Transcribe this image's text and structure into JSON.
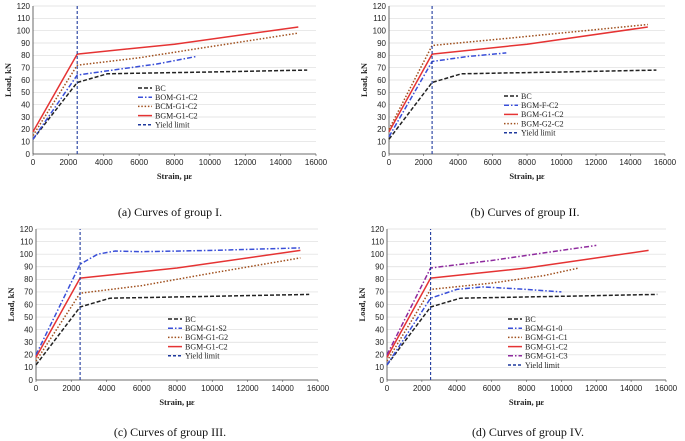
{
  "figure": {
    "xlabel": "Strain, με",
    "ylabel": "Load, kN"
  },
  "chart_data": [
    {
      "type": "line",
      "caption": "(a) Curves of group I.",
      "xlabel": "Strain, με",
      "ylabel": "Load, kN",
      "xlim": [
        0,
        16000
      ],
      "ylim": [
        0,
        120
      ],
      "xticks": [
        0,
        2000,
        4000,
        6000,
        8000,
        10000,
        12000,
        14000,
        16000
      ],
      "yticks": [
        0,
        10,
        20,
        30,
        40,
        50,
        60,
        70,
        80,
        90,
        100,
        110,
        120
      ],
      "yield_limit": 2500,
      "series": [
        {
          "name": "BC",
          "color": "#222222",
          "style": "dashed",
          "x": [
            0,
            2500,
            4200,
            6000,
            10000,
            15500
          ],
          "y": [
            12,
            58,
            65,
            65.5,
            66.5,
            68
          ]
        },
        {
          "name": "BOM-G1-C2",
          "color": "#3a4fd8",
          "style": "dashdot",
          "x": [
            0,
            2500,
            4500,
            7000,
            9200
          ],
          "y": [
            12,
            64,
            68,
            73,
            79
          ]
        },
        {
          "name": "BCM-G1-C2",
          "color": "#a0501e",
          "style": "dotted",
          "x": [
            0,
            2500,
            6000,
            10000,
            15000
          ],
          "y": [
            15,
            72,
            78,
            87,
            98
          ]
        },
        {
          "name": "BGM-G1-C2",
          "color": "#e53333",
          "style": "solid",
          "x": [
            0,
            2500,
            8000,
            15000
          ],
          "y": [
            18,
            81,
            89,
            103
          ]
        },
        {
          "name": "Yield limit",
          "color": "#1f3a9e",
          "style": "shortdash",
          "x": [
            2500,
            2500
          ],
          "y": [
            0,
            120
          ]
        }
      ]
    },
    {
      "type": "line",
      "caption": "(b) Curves of group II.",
      "xlabel": "Strain, με",
      "ylabel": "Load, kN",
      "xlim": [
        0,
        16000
      ],
      "ylim": [
        0,
        120
      ],
      "xticks": [
        0,
        2000,
        4000,
        6000,
        8000,
        10000,
        12000,
        14000,
        16000
      ],
      "yticks": [
        0,
        10,
        20,
        30,
        40,
        50,
        60,
        70,
        80,
        90,
        100,
        110,
        120
      ],
      "yield_limit": 2500,
      "series": [
        {
          "name": "BC",
          "color": "#222222",
          "style": "dashed",
          "x": [
            0,
            2500,
            4200,
            6000,
            10000,
            15500
          ],
          "y": [
            12,
            58,
            65,
            65.5,
            66.5,
            68
          ]
        },
        {
          "name": "BGM-F-C2",
          "color": "#3a4fd8",
          "style": "dashdot",
          "x": [
            0,
            2500,
            4500,
            6800
          ],
          "y": [
            14,
            75,
            79,
            82
          ]
        },
        {
          "name": "BGM-G1-C2",
          "color": "#e53333",
          "style": "solid",
          "x": [
            0,
            2500,
            8000,
            15000
          ],
          "y": [
            18,
            81,
            89,
            103
          ]
        },
        {
          "name": "BGM-G2-C2",
          "color": "#a0501e",
          "style": "dotted",
          "x": [
            0,
            2500,
            7000,
            15000
          ],
          "y": [
            20,
            88,
            94,
            105
          ]
        },
        {
          "name": "Yield limit",
          "color": "#1f3a9e",
          "style": "shortdash",
          "x": [
            2500,
            2500
          ],
          "y": [
            0,
            120
          ]
        }
      ]
    },
    {
      "type": "line",
      "caption": "(c) Curves of group III.",
      "xlabel": "Strain, με",
      "ylabel": "Load, kN",
      "xlim": [
        0,
        16000
      ],
      "ylim": [
        0,
        120
      ],
      "xticks": [
        0,
        2000,
        4000,
        6000,
        8000,
        10000,
        12000,
        14000,
        16000
      ],
      "yticks": [
        0,
        10,
        20,
        30,
        40,
        50,
        60,
        70,
        80,
        90,
        100,
        110,
        120
      ],
      "yield_limit": 2500,
      "series": [
        {
          "name": "BC",
          "color": "#222222",
          "style": "dashed",
          "x": [
            0,
            2500,
            4200,
            6000,
            10000,
            15500
          ],
          "y": [
            12,
            58,
            65,
            65.5,
            66.5,
            68
          ]
        },
        {
          "name": "BGM-G1-S2",
          "color": "#3a4fd8",
          "style": "dashdot",
          "x": [
            0,
            2500,
            3500,
            4500,
            6000,
            10000,
            15000
          ],
          "y": [
            20,
            92,
            100,
            102.5,
            102,
            103,
            105
          ]
        },
        {
          "name": "BGM-G1-G2",
          "color": "#a0501e",
          "style": "dotted",
          "x": [
            0,
            2500,
            6000,
            10000,
            15000
          ],
          "y": [
            15,
            69,
            75,
            85,
            97
          ]
        },
        {
          "name": "BGM-G1-C2",
          "color": "#e53333",
          "style": "solid",
          "x": [
            0,
            2500,
            8000,
            15000
          ],
          "y": [
            18,
            81,
            89,
            103
          ]
        },
        {
          "name": "Yield limit",
          "color": "#1f3a9e",
          "style": "shortdash",
          "x": [
            2500,
            2500
          ],
          "y": [
            0,
            120
          ]
        }
      ]
    },
    {
      "type": "line",
      "caption": "(d) Curves of group IV.",
      "xlabel": "Strain, με",
      "ylabel": "Load, kN",
      "xlim": [
        0,
        16000
      ],
      "ylim": [
        0,
        120
      ],
      "xticks": [
        0,
        2000,
        4000,
        6000,
        8000,
        10000,
        12000,
        14000,
        16000
      ],
      "yticks": [
        0,
        10,
        20,
        30,
        40,
        50,
        60,
        70,
        80,
        90,
        100,
        110,
        120
      ],
      "yield_limit": 2500,
      "series": [
        {
          "name": "BC",
          "color": "#222222",
          "style": "dashed",
          "x": [
            0,
            2500,
            4200,
            6000,
            10000,
            15500
          ],
          "y": [
            12,
            58,
            65,
            65.5,
            66.5,
            68
          ]
        },
        {
          "name": "BGM-G1-0",
          "color": "#3a4fd8",
          "style": "dashdot",
          "x": [
            0,
            2500,
            4000,
            5500,
            8000,
            10000
          ],
          "y": [
            12,
            65,
            72,
            74,
            72,
            70
          ]
        },
        {
          "name": "BGM-G1-C1",
          "color": "#a0501e",
          "style": "dotted",
          "x": [
            0,
            2500,
            6000,
            9000,
            11000
          ],
          "y": [
            15,
            72,
            77,
            83,
            89
          ]
        },
        {
          "name": "BGM-G1-C2",
          "color": "#e53333",
          "style": "solid",
          "x": [
            0,
            2500,
            8000,
            15000
          ],
          "y": [
            18,
            81,
            89,
            103
          ]
        },
        {
          "name": "BGM-G1-C3",
          "color": "#8e2a9e",
          "style": "dashdot",
          "x": [
            0,
            2500,
            6000,
            9000,
            12000
          ],
          "y": [
            20,
            89,
            95,
            101,
            107
          ]
        },
        {
          "name": "Yield limit",
          "color": "#1f3a9e",
          "style": "shortdash",
          "x": [
            2500,
            2500
          ],
          "y": [
            0,
            120
          ]
        }
      ]
    }
  ]
}
